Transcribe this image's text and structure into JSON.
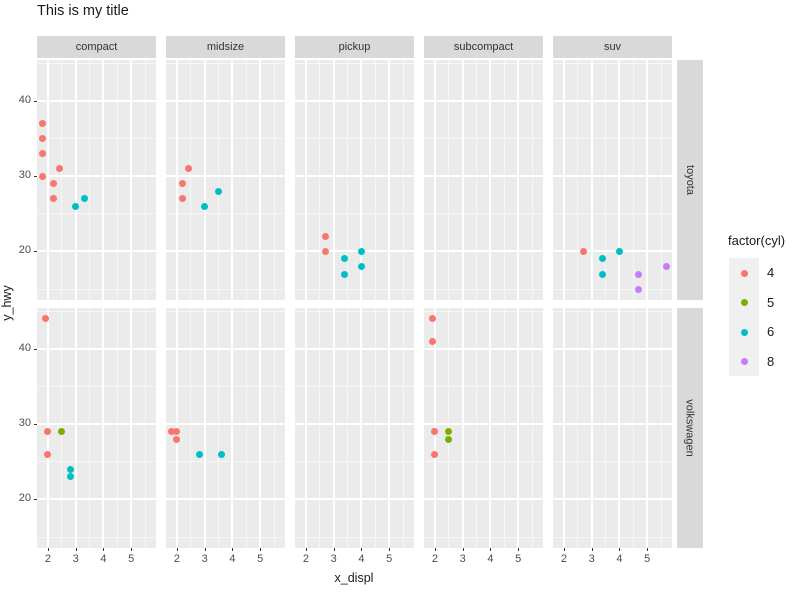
{
  "title": "This is my title",
  "axes": {
    "x_title": "x_displ",
    "y_title": "y_hwy",
    "x_ticks": [
      2,
      3,
      4,
      5
    ],
    "x_minor": [
      2.5,
      3.5,
      4.5,
      5.5
    ],
    "y_ticks": [
      40,
      30,
      20
    ],
    "y_minor": [
      45,
      35,
      25,
      15
    ],
    "x_domain": [
      1.605,
      5.895
    ],
    "y_domain": [
      13.55,
      45.45
    ]
  },
  "facets": {
    "cols": [
      "compact",
      "midsize",
      "pickup",
      "subcompact",
      "suv"
    ],
    "rows": [
      "toyota",
      "volkswagen"
    ]
  },
  "legend": {
    "title": "factor(cyl)",
    "entries": [
      {
        "label": "4",
        "color": "#F8766D"
      },
      {
        "label": "5",
        "color": "#7CAE00"
      },
      {
        "label": "6",
        "color": "#00BFC4"
      },
      {
        "label": "8",
        "color": "#C77CFF"
      }
    ]
  },
  "colors": {
    "panel_background": "#EBEBEB",
    "strip_background": "#D9D9D9",
    "gridline": "#FFFFFF",
    "axis_text": "#4D4D4D",
    "cyl_4": "#F8766D",
    "cyl_5": "#7CAE00",
    "cyl_6": "#00BFC4",
    "cyl_8": "#C77CFF"
  },
  "chart_data": {
    "type": "scatter",
    "title": "This is my title",
    "xlabel": "x_displ",
    "ylabel": "y_hwy",
    "xlim": [
      1.605,
      5.895
    ],
    "ylim": [
      13.55,
      45.45
    ],
    "legend_title": "factor(cyl)",
    "legend_position": "right",
    "grid": true,
    "facet_rows": [
      "toyota",
      "volkswagen"
    ],
    "facet_cols": [
      "compact",
      "midsize",
      "pickup",
      "subcompact",
      "suv"
    ],
    "panels": [
      {
        "row": "toyota",
        "col": "compact",
        "points": [
          {
            "x": 1.8,
            "y": 37,
            "cyl": "4"
          },
          {
            "x": 1.8,
            "y": 35,
            "cyl": "4"
          },
          {
            "x": 1.8,
            "y": 33,
            "cyl": "4"
          },
          {
            "x": 1.8,
            "y": 30,
            "cyl": "4"
          },
          {
            "x": 2.2,
            "y": 29,
            "cyl": "4"
          },
          {
            "x": 2.2,
            "y": 27,
            "cyl": "4"
          },
          {
            "x": 2.4,
            "y": 31,
            "cyl": "4"
          },
          {
            "x": 3.0,
            "y": 26,
            "cyl": "6"
          },
          {
            "x": 3.3,
            "y": 27,
            "cyl": "6"
          }
        ]
      },
      {
        "row": "toyota",
        "col": "midsize",
        "points": [
          {
            "x": 2.2,
            "y": 29,
            "cyl": "4"
          },
          {
            "x": 2.2,
            "y": 27,
            "cyl": "4"
          },
          {
            "x": 2.4,
            "y": 31,
            "cyl": "4"
          },
          {
            "x": 3.0,
            "y": 26,
            "cyl": "6"
          },
          {
            "x": 3.5,
            "y": 28,
            "cyl": "6"
          }
        ]
      },
      {
        "row": "toyota",
        "col": "pickup",
        "points": [
          {
            "x": 2.7,
            "y": 22,
            "cyl": "4"
          },
          {
            "x": 2.7,
            "y": 20,
            "cyl": "4"
          },
          {
            "x": 3.4,
            "y": 19,
            "cyl": "6"
          },
          {
            "x": 3.4,
            "y": 17,
            "cyl": "6"
          },
          {
            "x": 4.0,
            "y": 20,
            "cyl": "6"
          },
          {
            "x": 4.0,
            "y": 18,
            "cyl": "6"
          }
        ]
      },
      {
        "row": "toyota",
        "col": "subcompact",
        "points": []
      },
      {
        "row": "toyota",
        "col": "suv",
        "points": [
          {
            "x": 2.7,
            "y": 20,
            "cyl": "4"
          },
          {
            "x": 3.4,
            "y": 19,
            "cyl": "6"
          },
          {
            "x": 3.4,
            "y": 17,
            "cyl": "6"
          },
          {
            "x": 4.0,
            "y": 20,
            "cyl": "6"
          },
          {
            "x": 4.7,
            "y": 17,
            "cyl": "8"
          },
          {
            "x": 4.7,
            "y": 15,
            "cyl": "8"
          },
          {
            "x": 5.7,
            "y": 18,
            "cyl": "8"
          }
        ]
      },
      {
        "row": "volkswagen",
        "col": "compact",
        "points": [
          {
            "x": 1.9,
            "y": 44,
            "cyl": "4"
          },
          {
            "x": 2.0,
            "y": 29,
            "cyl": "4"
          },
          {
            "x": 2.0,
            "y": 26,
            "cyl": "4"
          },
          {
            "x": 2.5,
            "y": 29,
            "cyl": "5"
          },
          {
            "x": 2.8,
            "y": 24,
            "cyl": "6"
          },
          {
            "x": 2.8,
            "y": 23,
            "cyl": "6"
          }
        ]
      },
      {
        "row": "volkswagen",
        "col": "midsize",
        "points": [
          {
            "x": 1.8,
            "y": 29,
            "cyl": "4"
          },
          {
            "x": 2.0,
            "y": 29,
            "cyl": "4"
          },
          {
            "x": 2.0,
            "y": 28,
            "cyl": "4"
          },
          {
            "x": 2.8,
            "y": 26,
            "cyl": "6"
          },
          {
            "x": 3.6,
            "y": 26,
            "cyl": "6"
          }
        ]
      },
      {
        "row": "volkswagen",
        "col": "pickup",
        "points": []
      },
      {
        "row": "volkswagen",
        "col": "subcompact",
        "points": [
          {
            "x": 1.9,
            "y": 44,
            "cyl": "4"
          },
          {
            "x": 1.9,
            "y": 41,
            "cyl": "4"
          },
          {
            "x": 2.0,
            "y": 29,
            "cyl": "4"
          },
          {
            "x": 2.0,
            "y": 26,
            "cyl": "4"
          },
          {
            "x": 2.5,
            "y": 29,
            "cyl": "5"
          },
          {
            "x": 2.5,
            "y": 28,
            "cyl": "5"
          }
        ]
      },
      {
        "row": "volkswagen",
        "col": "suv",
        "points": []
      }
    ]
  }
}
